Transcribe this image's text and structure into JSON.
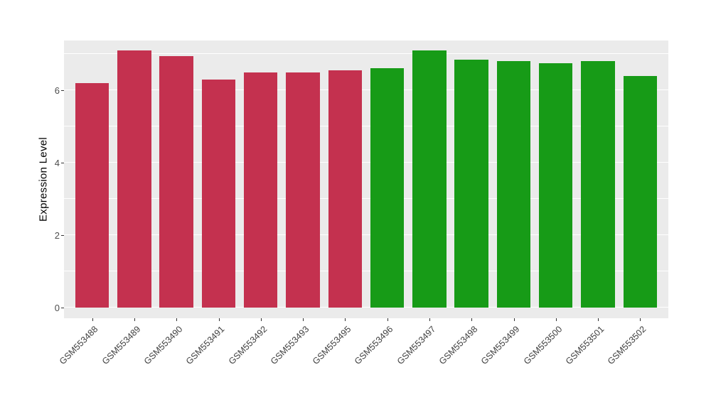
{
  "chart_data": {
    "type": "bar",
    "title": "",
    "xlabel": "",
    "ylabel": "Expression Level",
    "ylim": [
      0,
      7.5
    ],
    "yticks": [
      0,
      2,
      4,
      6
    ],
    "yticks_minor": [
      1,
      3,
      5,
      7
    ],
    "grid": "on",
    "legend_position": "none",
    "panel_bg": "#EBEBEB",
    "grid_color": "#FFFFFF",
    "categories": [
      "GSM553488",
      "GSM553489",
      "GSM553490",
      "GSM553491",
      "GSM553492",
      "GSM553493",
      "GSM553495",
      "GSM553496",
      "GSM553497",
      "GSM553498",
      "GSM553499",
      "GSM553500",
      "GSM553501",
      "GSM553502"
    ],
    "values": [
      6.2,
      7.1,
      6.95,
      6.3,
      6.5,
      6.5,
      6.55,
      6.6,
      7.1,
      6.85,
      6.8,
      6.75,
      6.8,
      6.4
    ],
    "bar_colors": [
      "#C4314F",
      "#C4314F",
      "#C4314F",
      "#C4314F",
      "#C4314F",
      "#C4314F",
      "#C4314F",
      "#179B17",
      "#179B17",
      "#179B17",
      "#179B17",
      "#179B17",
      "#179B17",
      "#179B17"
    ],
    "group_colors": {
      "red": "#C4314F",
      "green": "#179B17"
    }
  }
}
